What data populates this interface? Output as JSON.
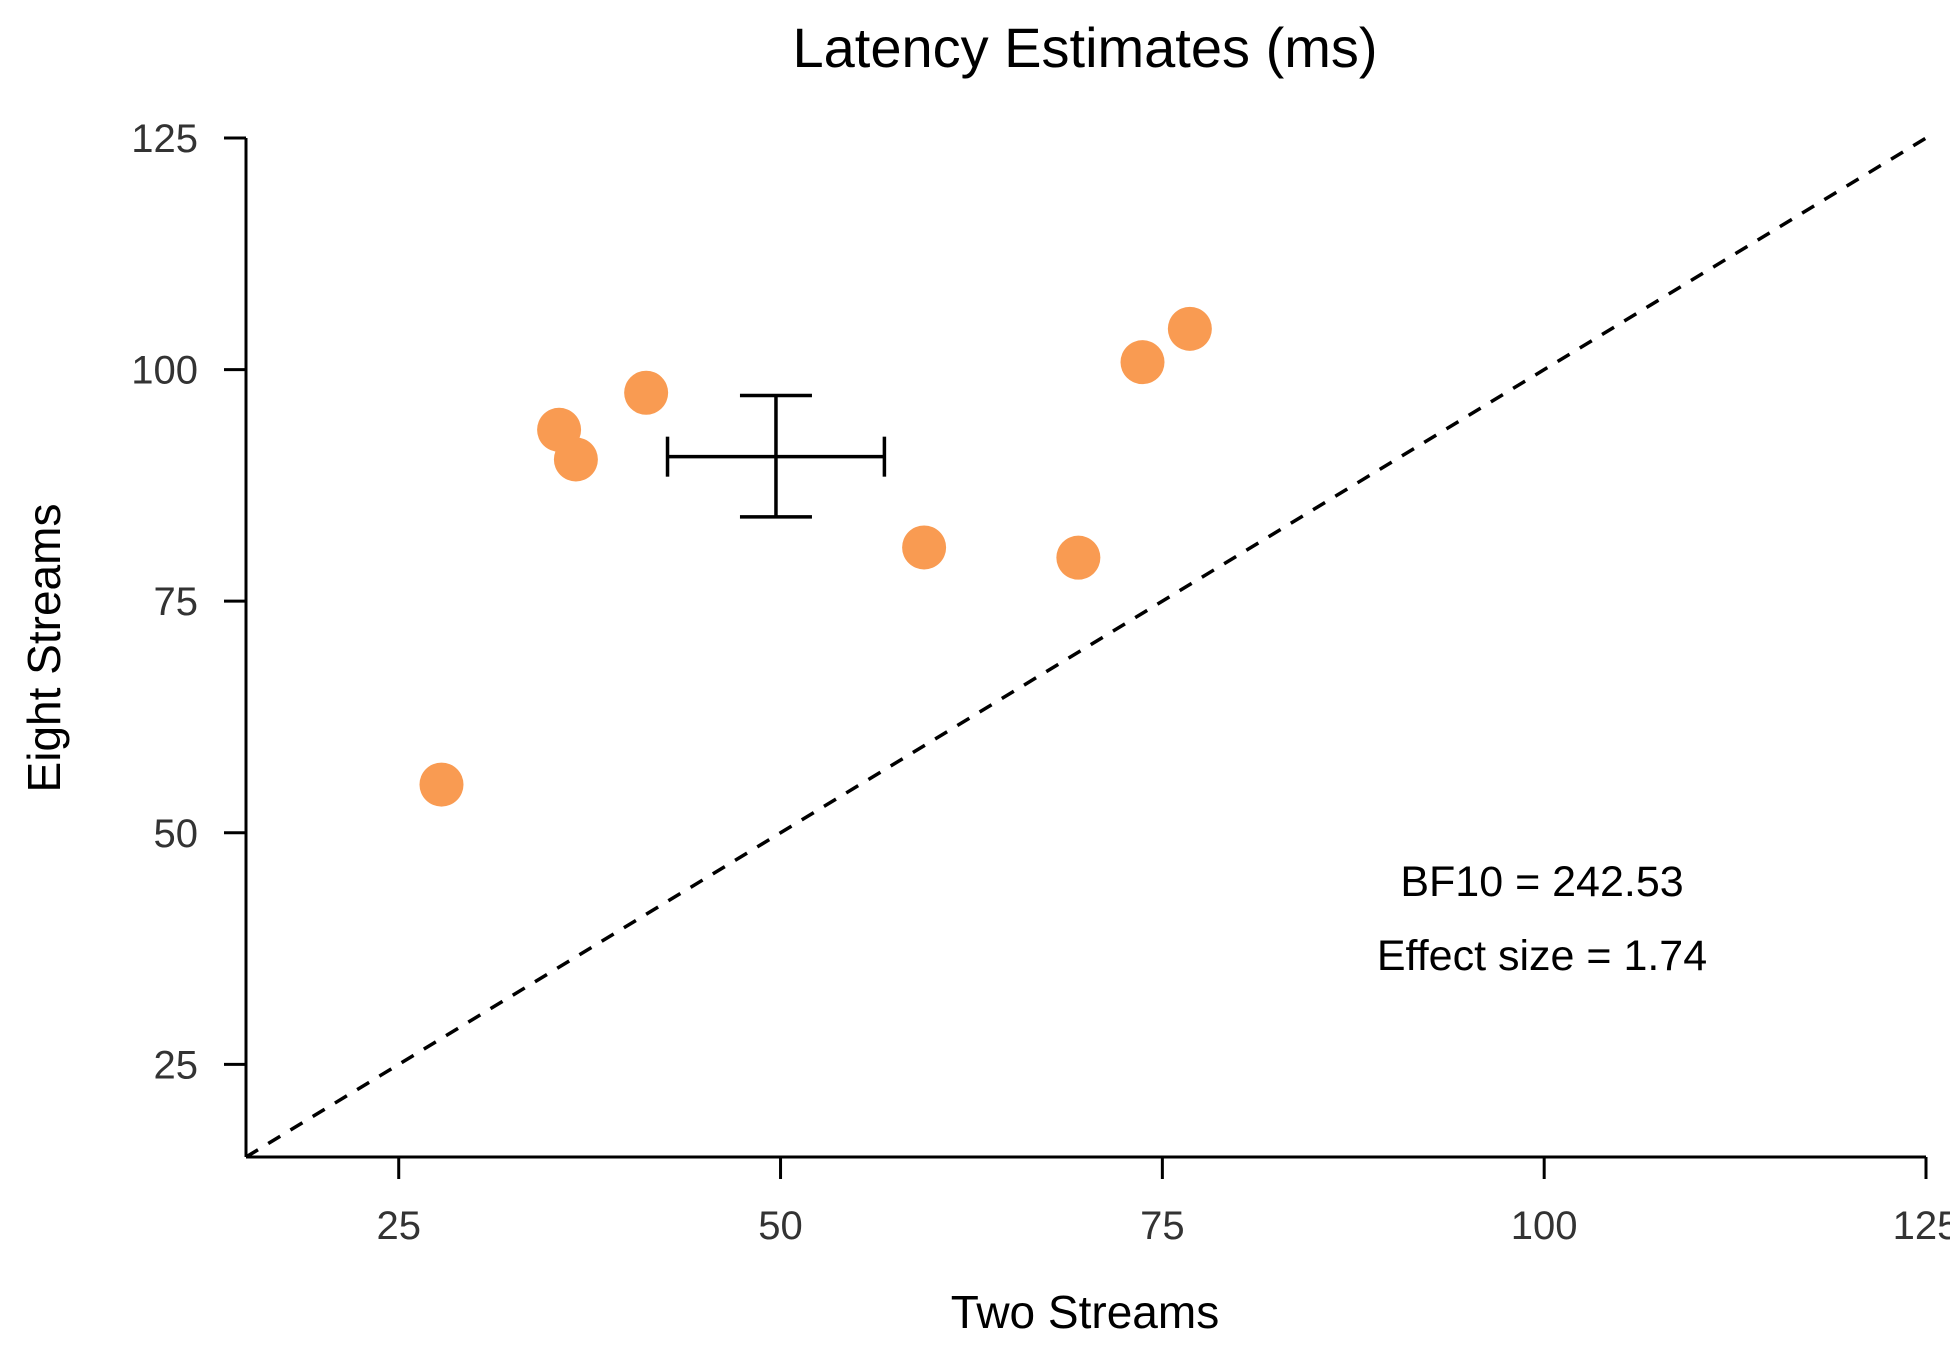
{
  "chart_data": {
    "type": "scatter",
    "title": "Latency Estimates (ms)",
    "xlabel": "Two Streams",
    "ylabel": "Eight Streams",
    "xlim": [
      15,
      125
    ],
    "ylim": [
      15,
      125
    ],
    "xticks": [
      25,
      50,
      75,
      100,
      125
    ],
    "yticks": [
      25,
      50,
      75,
      100,
      125
    ],
    "xtick_labels": [
      "25",
      "50",
      "75",
      "100",
      "125"
    ],
    "ytick_labels": [
      "25",
      "50",
      "75",
      "100",
      "125"
    ],
    "grid": false,
    "reference_line": "y = x",
    "point_color": "#f99b52",
    "points": [
      {
        "x": 27.8,
        "y": 55.2
      },
      {
        "x": 35.5,
        "y": 93.5
      },
      {
        "x": 36.6,
        "y": 90.3
      },
      {
        "x": 41.2,
        "y": 97.5
      },
      {
        "x": 59.4,
        "y": 80.8
      },
      {
        "x": 69.5,
        "y": 79.7
      },
      {
        "x": 73.7,
        "y": 100.8
      },
      {
        "x": 76.8,
        "y": 104.4
      }
    ],
    "summary": {
      "x_mean": 49.7,
      "x_low": 42.6,
      "x_high": 56.8,
      "y_mean": 90.6,
      "y_low": 84.1,
      "y_high": 97.2
    },
    "annotations": [
      "BF10 = 242.53",
      "Effect size = 1.74"
    ]
  }
}
